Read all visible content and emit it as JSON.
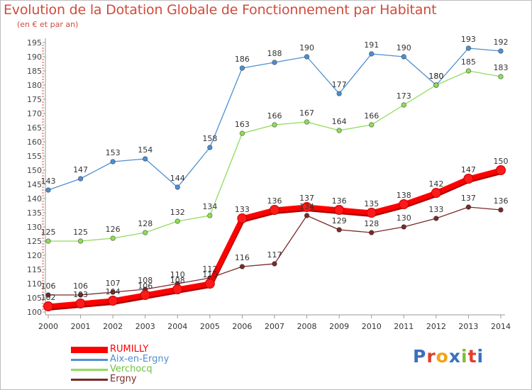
{
  "title": "Evolution de la Dotation Globale de Fonctionnement par Habitant",
  "subtitle": "(en € et par an)",
  "logo": {
    "text": "Proxiti",
    "colors": [
      "#3a6fbf",
      "#e0402a",
      "#f2a21a",
      "#3a6fbf",
      "#7bbf3a",
      "#e0402a",
      "#3a6fbf"
    ]
  },
  "chart_data": {
    "type": "line",
    "title": "Evolution de la Dotation Globale de Fonctionnement par Habitant",
    "subtitle": "(en € et par an)",
    "xlabel": "",
    "ylabel": "",
    "x": [
      "2000",
      "2001",
      "2002",
      "2003",
      "2004",
      "2005",
      "2006",
      "2007",
      "2008",
      "2009",
      "2010",
      "2011",
      "2012",
      "2013",
      "2014"
    ],
    "ylim": [
      100,
      195
    ],
    "yticks": [
      100,
      105,
      110,
      115,
      120,
      125,
      130,
      135,
      140,
      145,
      150,
      155,
      160,
      165,
      170,
      175,
      180,
      185,
      190,
      195
    ],
    "grid": false,
    "legend_position": "bottom-left",
    "series": [
      {
        "name": "RUMILLY",
        "color": "#ff0000",
        "values": [
          102,
          103,
          104,
          106,
          108,
          110,
          133,
          136,
          137,
          136,
          135,
          138,
          142,
          147,
          150
        ]
      },
      {
        "name": "Aix-en-Ergny",
        "color": "#4f8fd0",
        "values": [
          143,
          147,
          153,
          154,
          144,
          158,
          186,
          188,
          190,
          177,
          191,
          190,
          180,
          193,
          192
        ]
      },
      {
        "name": "Verchocq",
        "color": "#8fdc5a",
        "values": [
          125,
          125,
          126,
          128,
          132,
          134,
          163,
          166,
          167,
          164,
          166,
          173,
          180,
          185,
          183
        ]
      },
      {
        "name": "Ergny",
        "color": "#7a2a2a",
        "values": [
          106,
          106,
          107,
          108,
          110,
          112,
          116,
          117,
          134,
          129,
          128,
          130,
          133,
          137,
          136
        ]
      }
    ]
  }
}
